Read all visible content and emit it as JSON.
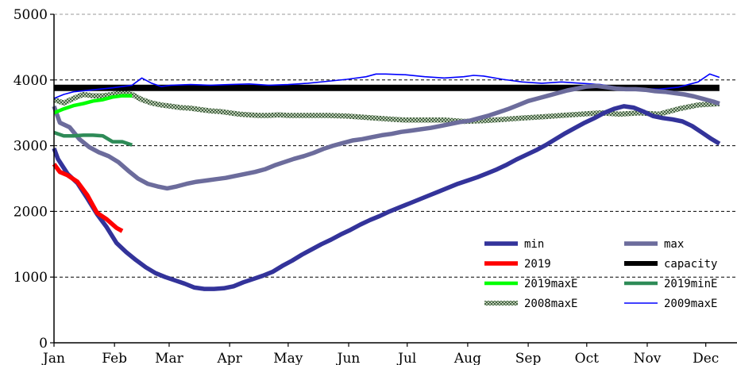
{
  "chart_data": {
    "type": "line",
    "title": "",
    "xlabel": "",
    "ylabel": "",
    "ylim": [
      0,
      5000
    ],
    "xlim": [
      0,
      350
    ],
    "y_ticks": [
      0,
      1000,
      2000,
      3000,
      4000,
      5000
    ],
    "x_ticks": [
      {
        "label": "Jan",
        "x": 0
      },
      {
        "label": "Feb",
        "x": 31
      },
      {
        "label": "Mar",
        "x": 59
      },
      {
        "label": "Apr",
        "x": 90
      },
      {
        "label": "May",
        "x": 120
      },
      {
        "label": "Jun",
        "x": 151
      },
      {
        "label": "Jul",
        "x": 181
      },
      {
        "label": "Aug",
        "x": 212
      },
      {
        "label": "Sep",
        "x": 243
      },
      {
        "label": "Oct",
        "x": 273
      },
      {
        "label": "Nov",
        "x": 304
      },
      {
        "label": "Dec",
        "x": 334
      }
    ],
    "grid": "horizontal dashed",
    "legend_position": "lower-right",
    "series": [
      {
        "name": "min",
        "color": "#33339a",
        "style": "solid-thick",
        "points": [
          [
            0,
            2960
          ],
          [
            2,
            2800
          ],
          [
            7,
            2570
          ],
          [
            12,
            2430
          ],
          [
            17,
            2200
          ],
          [
            22,
            1960
          ],
          [
            27,
            1760
          ],
          [
            32,
            1520
          ],
          [
            37,
            1380
          ],
          [
            42,
            1260
          ],
          [
            47,
            1150
          ],
          [
            52,
            1060
          ],
          [
            57,
            1000
          ],
          [
            62,
            950
          ],
          [
            67,
            900
          ],
          [
            72,
            840
          ],
          [
            77,
            820
          ],
          [
            82,
            820
          ],
          [
            87,
            830
          ],
          [
            92,
            860
          ],
          [
            97,
            920
          ],
          [
            102,
            970
          ],
          [
            107,
            1020
          ],
          [
            112,
            1080
          ],
          [
            117,
            1170
          ],
          [
            122,
            1250
          ],
          [
            127,
            1340
          ],
          [
            132,
            1420
          ],
          [
            137,
            1500
          ],
          [
            142,
            1570
          ],
          [
            147,
            1650
          ],
          [
            152,
            1720
          ],
          [
            157,
            1800
          ],
          [
            162,
            1870
          ],
          [
            167,
            1930
          ],
          [
            172,
            2000
          ],
          [
            177,
            2060
          ],
          [
            182,
            2120
          ],
          [
            187,
            2180
          ],
          [
            192,
            2240
          ],
          [
            197,
            2300
          ],
          [
            202,
            2360
          ],
          [
            207,
            2420
          ],
          [
            212,
            2470
          ],
          [
            217,
            2520
          ],
          [
            222,
            2580
          ],
          [
            227,
            2640
          ],
          [
            232,
            2710
          ],
          [
            237,
            2790
          ],
          [
            242,
            2860
          ],
          [
            247,
            2930
          ],
          [
            252,
            3010
          ],
          [
            257,
            3100
          ],
          [
            262,
            3190
          ],
          [
            267,
            3270
          ],
          [
            272,
            3350
          ],
          [
            277,
            3420
          ],
          [
            282,
            3500
          ],
          [
            287,
            3560
          ],
          [
            292,
            3600
          ],
          [
            297,
            3580
          ],
          [
            302,
            3520
          ],
          [
            307,
            3450
          ],
          [
            312,
            3420
          ],
          [
            317,
            3400
          ],
          [
            322,
            3370
          ],
          [
            327,
            3300
          ],
          [
            332,
            3200
          ],
          [
            337,
            3100
          ],
          [
            341,
            3030
          ]
        ]
      },
      {
        "name": "max",
        "color": "#6c6c9c",
        "style": "solid-thick",
        "points": [
          [
            0,
            3600
          ],
          [
            3,
            3350
          ],
          [
            8,
            3280
          ],
          [
            13,
            3100
          ],
          [
            18,
            2980
          ],
          [
            23,
            2900
          ],
          [
            28,
            2840
          ],
          [
            33,
            2750
          ],
          [
            38,
            2620
          ],
          [
            43,
            2500
          ],
          [
            48,
            2420
          ],
          [
            53,
            2380
          ],
          [
            58,
            2350
          ],
          [
            63,
            2380
          ],
          [
            68,
            2420
          ],
          [
            73,
            2450
          ],
          [
            78,
            2470
          ],
          [
            83,
            2490
          ],
          [
            88,
            2510
          ],
          [
            93,
            2540
          ],
          [
            98,
            2570
          ],
          [
            103,
            2600
          ],
          [
            108,
            2640
          ],
          [
            113,
            2700
          ],
          [
            118,
            2750
          ],
          [
            123,
            2800
          ],
          [
            128,
            2840
          ],
          [
            133,
            2890
          ],
          [
            138,
            2950
          ],
          [
            143,
            3000
          ],
          [
            148,
            3040
          ],
          [
            153,
            3080
          ],
          [
            158,
            3100
          ],
          [
            163,
            3130
          ],
          [
            168,
            3160
          ],
          [
            173,
            3180
          ],
          [
            178,
            3210
          ],
          [
            183,
            3230
          ],
          [
            188,
            3250
          ],
          [
            193,
            3270
          ],
          [
            198,
            3300
          ],
          [
            203,
            3330
          ],
          [
            208,
            3360
          ],
          [
            213,
            3380
          ],
          [
            218,
            3420
          ],
          [
            223,
            3460
          ],
          [
            228,
            3510
          ],
          [
            233,
            3560
          ],
          [
            238,
            3620
          ],
          [
            243,
            3680
          ],
          [
            248,
            3720
          ],
          [
            253,
            3760
          ],
          [
            258,
            3800
          ],
          [
            263,
            3840
          ],
          [
            268,
            3870
          ],
          [
            273,
            3900
          ],
          [
            278,
            3910
          ],
          [
            283,
            3890
          ],
          [
            288,
            3870
          ],
          [
            293,
            3860
          ],
          [
            298,
            3860
          ],
          [
            303,
            3850
          ],
          [
            308,
            3830
          ],
          [
            313,
            3820
          ],
          [
            318,
            3800
          ],
          [
            323,
            3780
          ],
          [
            328,
            3750
          ],
          [
            333,
            3710
          ],
          [
            338,
            3670
          ],
          [
            341,
            3640
          ]
        ]
      },
      {
        "name": "2019",
        "color": "#ff0000",
        "style": "solid-thick",
        "points": [
          [
            0,
            2720
          ],
          [
            3,
            2600
          ],
          [
            7,
            2550
          ],
          [
            12,
            2450
          ],
          [
            17,
            2250
          ],
          [
            22,
            1980
          ],
          [
            27,
            1880
          ],
          [
            32,
            1750
          ],
          [
            35,
            1700
          ]
        ]
      },
      {
        "name": "capacity",
        "color": "#000000",
        "style": "solid-very-thick",
        "points": [
          [
            0,
            3880
          ],
          [
            341,
            3880
          ]
        ]
      },
      {
        "name": "2019maxE",
        "color": "#00ff00",
        "style": "solid",
        "points": [
          [
            0,
            3500
          ],
          [
            5,
            3560
          ],
          [
            10,
            3610
          ],
          [
            15,
            3640
          ],
          [
            20,
            3680
          ],
          [
            25,
            3700
          ],
          [
            30,
            3740
          ],
          [
            35,
            3760
          ],
          [
            40,
            3760
          ]
        ]
      },
      {
        "name": "2019minE",
        "color": "#2e8b57",
        "style": "solid",
        "points": [
          [
            0,
            3200
          ],
          [
            5,
            3150
          ],
          [
            10,
            3150
          ],
          [
            15,
            3160
          ],
          [
            20,
            3160
          ],
          [
            25,
            3150
          ],
          [
            30,
            3060
          ],
          [
            35,
            3060
          ],
          [
            40,
            3010
          ]
        ]
      },
      {
        "name": "2008maxE",
        "color": "#5a7a5a",
        "style": "checkered",
        "points": [
          [
            0,
            3700
          ],
          [
            5,
            3650
          ],
          [
            10,
            3720
          ],
          [
            15,
            3780
          ],
          [
            20,
            3760
          ],
          [
            25,
            3760
          ],
          [
            30,
            3780
          ],
          [
            35,
            3810
          ],
          [
            40,
            3780
          ],
          [
            45,
            3700
          ],
          [
            50,
            3650
          ],
          [
            55,
            3620
          ],
          [
            60,
            3600
          ],
          [
            65,
            3580
          ],
          [
            70,
            3570
          ],
          [
            75,
            3550
          ],
          [
            80,
            3530
          ],
          [
            85,
            3520
          ],
          [
            90,
            3500
          ],
          [
            95,
            3480
          ],
          [
            100,
            3470
          ],
          [
            105,
            3460
          ],
          [
            110,
            3460
          ],
          [
            115,
            3470
          ],
          [
            120,
            3460
          ],
          [
            130,
            3460
          ],
          [
            140,
            3460
          ],
          [
            150,
            3450
          ],
          [
            160,
            3430
          ],
          [
            170,
            3410
          ],
          [
            180,
            3390
          ],
          [
            190,
            3390
          ],
          [
            200,
            3390
          ],
          [
            210,
            3370
          ],
          [
            220,
            3380
          ],
          [
            230,
            3400
          ],
          [
            240,
            3420
          ],
          [
            250,
            3440
          ],
          [
            260,
            3460
          ],
          [
            270,
            3480
          ],
          [
            280,
            3500
          ],
          [
            290,
            3480
          ],
          [
            300,
            3500
          ],
          [
            310,
            3480
          ],
          [
            320,
            3560
          ],
          [
            330,
            3620
          ],
          [
            341,
            3640
          ]
        ]
      },
      {
        "name": "2009maxE",
        "color": "#0000ff",
        "style": "thin",
        "points": [
          [
            0,
            3720
          ],
          [
            5,
            3780
          ],
          [
            10,
            3820
          ],
          [
            20,
            3850
          ],
          [
            30,
            3880
          ],
          [
            40,
            3920
          ],
          [
            45,
            4030
          ],
          [
            50,
            3950
          ],
          [
            55,
            3900
          ],
          [
            60,
            3920
          ],
          [
            70,
            3930
          ],
          [
            80,
            3920
          ],
          [
            90,
            3930
          ],
          [
            100,
            3940
          ],
          [
            110,
            3920
          ],
          [
            120,
            3930
          ],
          [
            130,
            3950
          ],
          [
            140,
            3980
          ],
          [
            150,
            4010
          ],
          [
            160,
            4050
          ],
          [
            165,
            4090
          ],
          [
            170,
            4090
          ],
          [
            180,
            4080
          ],
          [
            190,
            4050
          ],
          [
            200,
            4030
          ],
          [
            210,
            4050
          ],
          [
            215,
            4070
          ],
          [
            220,
            4060
          ],
          [
            230,
            4010
          ],
          [
            240,
            3970
          ],
          [
            250,
            3950
          ],
          [
            260,
            3970
          ],
          [
            270,
            3950
          ],
          [
            280,
            3930
          ],
          [
            290,
            3880
          ],
          [
            300,
            3870
          ],
          [
            310,
            3860
          ],
          [
            320,
            3890
          ],
          [
            330,
            3970
          ],
          [
            336,
            4090
          ],
          [
            341,
            4040
          ]
        ]
      }
    ]
  }
}
